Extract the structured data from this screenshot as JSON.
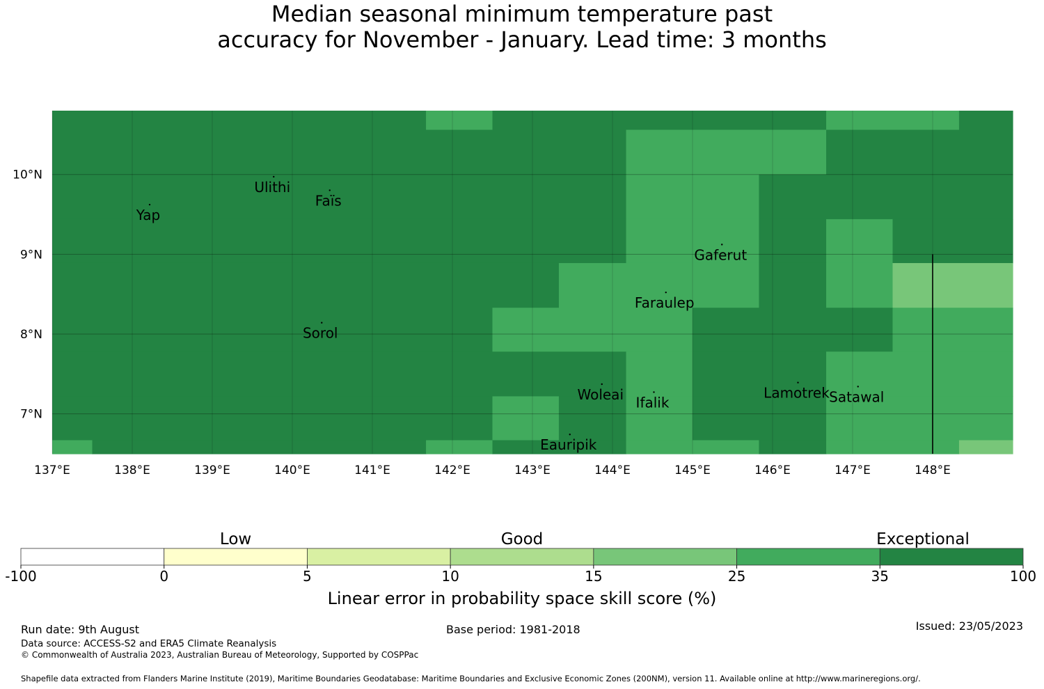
{
  "title": {
    "line1": "Median seasonal minimum temperature past",
    "line2": "accuracy for November - January. Lead time: 3 months"
  },
  "map": {
    "lat_range": [
      6.5,
      10.8
    ],
    "lon_range": [
      137.0,
      149.0
    ],
    "lat_ticks": [
      {
        "value": 10,
        "label": "10°N"
      },
      {
        "value": 9,
        "label": "9°N"
      },
      {
        "value": 8,
        "label": "8°N"
      },
      {
        "value": 7,
        "label": "7°N"
      }
    ],
    "lon_ticks": [
      {
        "value": 137,
        "label": "137°E"
      },
      {
        "value": 138,
        "label": "138°E"
      },
      {
        "value": 139,
        "label": "139°E"
      },
      {
        "value": 140,
        "label": "140°E"
      },
      {
        "value": 141,
        "label": "141°E"
      },
      {
        "value": 142,
        "label": "142°E"
      },
      {
        "value": 143,
        "label": "143°E"
      },
      {
        "value": 144,
        "label": "144°E"
      },
      {
        "value": 145,
        "label": "145°E"
      },
      {
        "value": 146,
        "label": "146°E"
      },
      {
        "value": 147,
        "label": "147°E"
      },
      {
        "value": 148,
        "label": "148°E"
      }
    ],
    "places": [
      {
        "name": "Ulithi",
        "lon": 139.75,
        "lat": 9.85
      },
      {
        "name": "Faïs",
        "lon": 140.45,
        "lat": 9.68
      },
      {
        "name": "Yap",
        "lon": 138.2,
        "lat": 9.5
      },
      {
        "name": "Gaferut",
        "lon": 145.35,
        "lat": 9.0
      },
      {
        "name": "Faraulep",
        "lon": 144.65,
        "lat": 8.4
      },
      {
        "name": "Sorol",
        "lon": 140.35,
        "lat": 8.02
      },
      {
        "name": "Woleai",
        "lon": 143.85,
        "lat": 7.25
      },
      {
        "name": "Ifalik",
        "lon": 144.5,
        "lat": 7.15
      },
      {
        "name": "Lamotrek",
        "lon": 146.3,
        "lat": 7.27
      },
      {
        "name": "Satawal",
        "lon": 147.05,
        "lat": 7.22
      },
      {
        "name": "Eauripik",
        "lon": 143.45,
        "lat": 6.62
      }
    ],
    "skill_grid": [
      {
        "lat_range": [
          10.56,
          10.8
        ],
        "cells": [
          [
            "137.0",
            "141.67",
            35
          ],
          [
            "141.67",
            "142.5",
            25
          ],
          [
            "142.5",
            "146.67",
            35
          ],
          [
            "146.67",
            "148.33",
            25
          ],
          [
            "148.33",
            "149.0",
            35
          ]
        ]
      },
      {
        "lat_range": [
          10.0,
          10.56
        ],
        "cells": [
          [
            "137.0",
            "144.17",
            35
          ],
          [
            "144.17",
            "146.67",
            25
          ],
          [
            "146.67",
            "149.0",
            35
          ]
        ]
      },
      {
        "lat_range": [
          9.44,
          10.0
        ],
        "cells": [
          [
            "137.0",
            "144.17",
            35
          ],
          [
            "144.17",
            "145.83",
            25
          ],
          [
            "145.83",
            "149.0",
            35
          ]
        ]
      },
      {
        "lat_range": [
          8.89,
          9.44
        ],
        "cells": [
          [
            "137.0",
            "144.17",
            35
          ],
          [
            "144.17",
            "145.83",
            25
          ],
          [
            "145.83",
            "146.67",
            35
          ],
          [
            "146.67",
            "147.5",
            25
          ],
          [
            "147.5",
            "149.0",
            35
          ]
        ]
      },
      {
        "lat_range": [
          8.33,
          8.89
        ],
        "cells": [
          [
            "137.0",
            "143.33",
            35
          ],
          [
            "143.33",
            "145.83",
            25
          ],
          [
            "145.83",
            "146.67",
            35
          ],
          [
            "146.67",
            "147.5",
            25
          ],
          [
            "147.5",
            "149.0",
            15
          ]
        ]
      },
      {
        "lat_range": [
          7.78,
          8.33
        ],
        "cells": [
          [
            "137.0",
            "142.5",
            35
          ],
          [
            "142.5",
            "145.0",
            25
          ],
          [
            "145.0",
            "147.5",
            35
          ],
          [
            "147.5",
            "149.0",
            25
          ]
        ]
      },
      {
        "lat_range": [
          7.22,
          7.78
        ],
        "cells": [
          [
            "137.0",
            "144.17",
            35
          ],
          [
            "144.17",
            "145.0",
            25
          ],
          [
            "145.0",
            "146.67",
            35
          ],
          [
            "146.67",
            "149.0",
            25
          ]
        ]
      },
      {
        "lat_range": [
          6.67,
          7.22
        ],
        "cells": [
          [
            "137.0",
            "142.5",
            35
          ],
          [
            "142.5",
            "143.33",
            25
          ],
          [
            "143.33",
            "144.17",
            35
          ],
          [
            "144.17",
            "145.0",
            25
          ],
          [
            "145.0",
            "146.67",
            35
          ],
          [
            "146.67",
            "149.0",
            25
          ]
        ]
      },
      {
        "lat_range": [
          6.5,
          6.67
        ],
        "cells": [
          [
            "137.0",
            "137.5",
            25
          ],
          [
            "137.5",
            "141.67",
            35
          ],
          [
            "141.67",
            "142.5",
            25
          ],
          [
            "142.5",
            "144.17",
            35
          ],
          [
            "144.17",
            "145.0",
            25
          ],
          [
            "145.0",
            "145.83",
            25
          ],
          [
            "145.83",
            "146.67",
            35
          ],
          [
            "146.67",
            "148.33",
            25
          ],
          [
            "148.33",
            "149.0",
            15
          ]
        ]
      }
    ],
    "boundary_line": {
      "lon": 148.0,
      "lat_range": [
        6.5,
        9.0
      ]
    }
  },
  "legend": {
    "categories": [
      "Low",
      "Good",
      "Exceptional"
    ],
    "bins": [
      {
        "from": -100,
        "to": 0,
        "color": "#ffffff"
      },
      {
        "from": 0,
        "to": 5,
        "color": "#ffffcc"
      },
      {
        "from": 5,
        "to": 10,
        "color": "#d9f0a3"
      },
      {
        "from": 10,
        "to": 15,
        "color": "#addd8e"
      },
      {
        "from": 15,
        "to": 25,
        "color": "#78c679"
      },
      {
        "from": 25,
        "to": 35,
        "color": "#41ab5d"
      },
      {
        "from": 35,
        "to": 100,
        "color": "#238443"
      }
    ],
    "tick_labels": [
      "-100",
      "0",
      "5",
      "10",
      "15",
      "25",
      "35",
      "100"
    ],
    "axis_label": "Linear error in probability space skill score (%)"
  },
  "footer": {
    "run_date": "Run date: 9th August",
    "base_period": "Base period: 1981-2018",
    "issued": "Issued: 23/05/2023",
    "data_source": "Data source: ACCESS-S2 and ERA5 Climate Reanalysis",
    "copyright": "© Commonwealth of Australia 2023, Australian Bureau of Meteorology, Supported by COSPPac",
    "shapefile": "Shapefile data extracted from Flanders Marine Institute (2019), Maritime Boundaries Geodatabase: Maritime Boundaries and Exclusive Economic Zones (200NM), version 11. Available online at http://www.marineregions.org/."
  }
}
